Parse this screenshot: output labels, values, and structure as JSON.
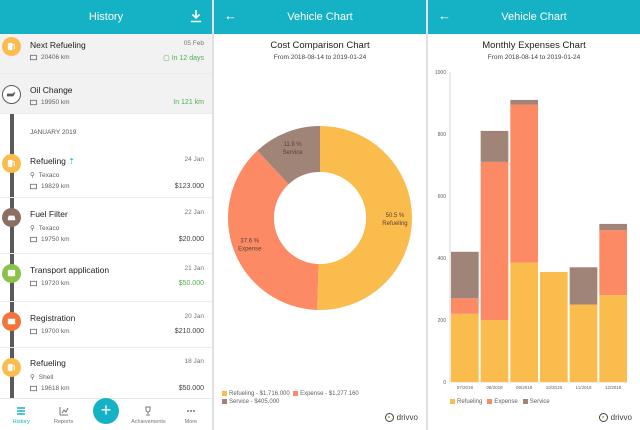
{
  "colors": {
    "accent": "#14b2c4",
    "refueling": "#fbbc4e",
    "expense": "#fc8a64",
    "service": "#a08478",
    "green": "#4caf50"
  },
  "history": {
    "title": "History",
    "upcoming": [
      {
        "title": "Next Refueling",
        "date": "05 Feb",
        "odometer": "20406 km",
        "remaining": "In 12 days",
        "icon": "fuel-pump-icon"
      },
      {
        "title": "Oil Change",
        "date": "",
        "odometer": "19950 km",
        "remaining": "In 121 km",
        "icon": "oil-can-icon"
      }
    ],
    "month_label": "JANUARY 2019",
    "entries": [
      {
        "title": "Refueling",
        "date": "24 Jan",
        "place": "Texaco",
        "odometer": "19829 km",
        "amount": "$123.000",
        "color": "#fbbc4e",
        "icon": "fuel-pump-icon",
        "green": false
      },
      {
        "title": "Fuel Filter",
        "date": "22 Jan",
        "place": "Texaco",
        "odometer": "19750 km",
        "amount": "$20.000",
        "color": "#8d6e63",
        "icon": "car-service-icon",
        "green": false
      },
      {
        "title": "Transport application",
        "date": "21 Jan",
        "place": "",
        "odometer": "19720 km",
        "amount": "$50.000",
        "color": "#8bc34a",
        "icon": "bus-icon",
        "green": true
      },
      {
        "title": "Registration",
        "date": "20 Jan",
        "place": "",
        "odometer": "19700 km",
        "amount": "$210.000",
        "color": "#f4743b",
        "icon": "document-icon",
        "green": false
      },
      {
        "title": "Refueling",
        "date": "18 Jan",
        "place": "Shell",
        "odometer": "19618 km",
        "amount": "$50.000",
        "color": "#fbbc4e",
        "icon": "fuel-pump-icon",
        "green": false
      }
    ],
    "tabs": [
      "History",
      "Reports",
      "Achievements",
      "More"
    ]
  },
  "pie_screen": {
    "title": "Vehicle Chart",
    "labels": {
      "refueling": [
        "50.5 %",
        "Refueling"
      ],
      "expense": [
        "37.6 %",
        "Expense"
      ],
      "service": [
        "11.9 %",
        "Service"
      ]
    },
    "legend": [
      "Refueling - $1,716.000",
      "Expense - $1,277.160",
      "Service - $405.000"
    ]
  },
  "bar_screen": {
    "title": "Vehicle Chart",
    "legend": [
      "Refueling",
      "Expense",
      "Service"
    ]
  },
  "brand": "drivvo",
  "chart_data": [
    {
      "type": "pie",
      "title": "Cost Comparison Chart",
      "subtitle": "From 2018-08-14 to 2019-01-24",
      "categories": [
        "Refueling",
        "Expense",
        "Service"
      ],
      "values": [
        1716.0,
        1277.16,
        405.0
      ],
      "percentages": [
        50.5,
        37.6,
        11.9
      ]
    },
    {
      "type": "bar",
      "stacked": true,
      "title": "Monthly Expenses Chart",
      "subtitle": "From 2018-08-14 to 2019-01-24",
      "categories": [
        "07/2018",
        "08/2018",
        "09/2018",
        "10/2018",
        "11/2018",
        "12/2018"
      ],
      "series": [
        {
          "name": "Refueling",
          "values": [
            220,
            200,
            385,
            355,
            250,
            280
          ]
        },
        {
          "name": "Expense",
          "values": [
            50,
            510,
            510,
            0,
            0,
            210
          ]
        },
        {
          "name": "Service",
          "values": [
            150,
            100,
            15,
            0,
            120,
            20
          ]
        }
      ],
      "ylim": [
        0,
        1000
      ],
      "yticks": [
        "0",
        "200",
        "400",
        "600",
        "800",
        "1000"
      ],
      "legend": "bottom"
    }
  ]
}
